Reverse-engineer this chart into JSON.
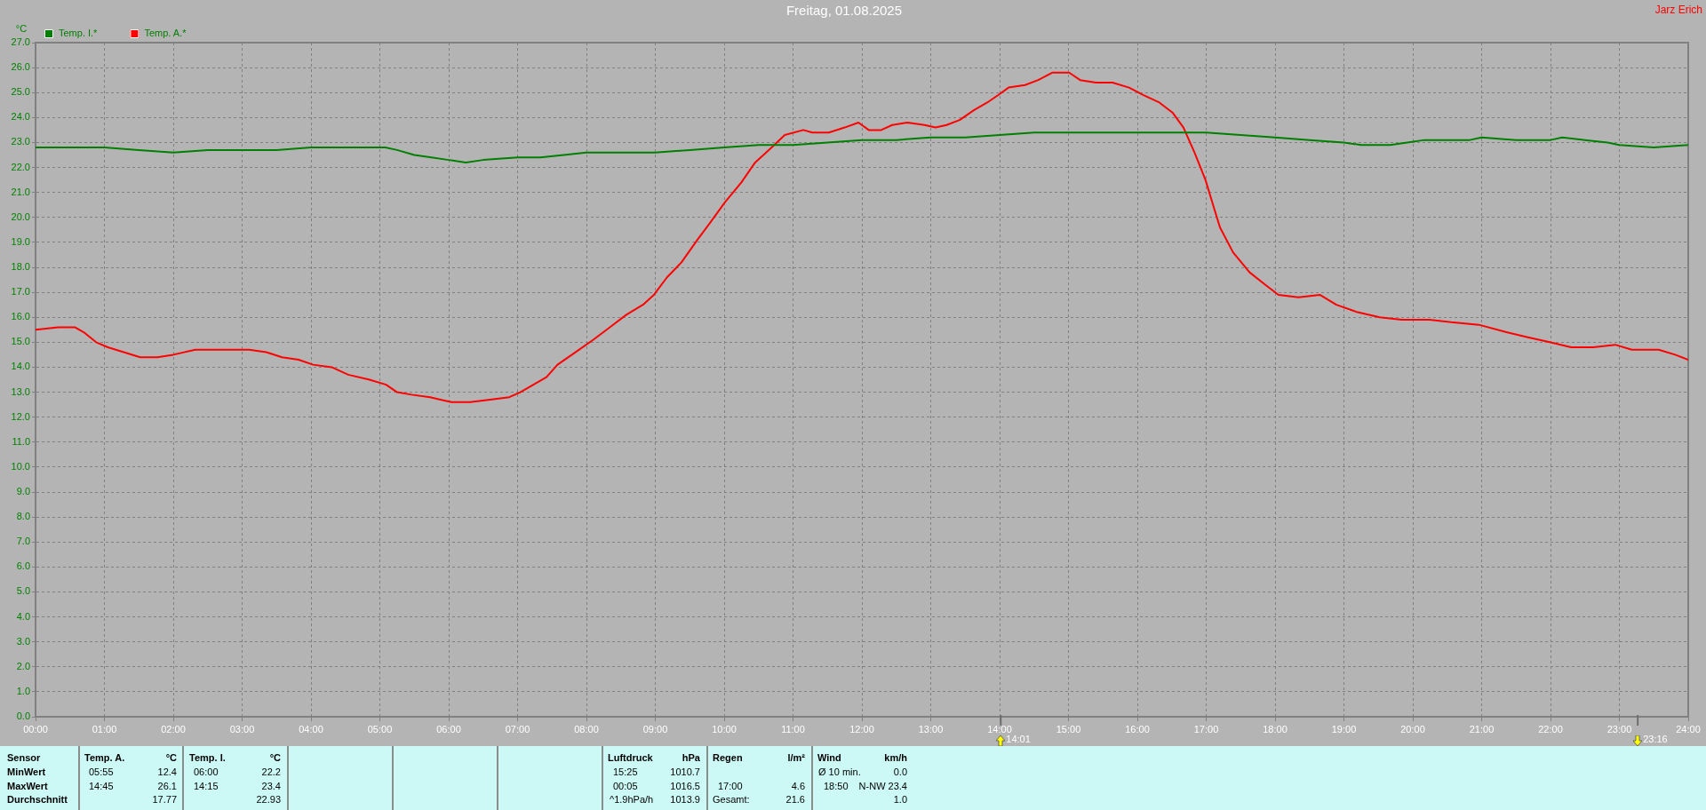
{
  "chart_data": {
    "type": "line",
    "title": "Freitag, 01.08.2025",
    "ylabel": "°C",
    "series": [
      {
        "name": "Temp. I.*",
        "color": "#008000",
        "x": [
          0,
          0.75,
          1,
          1.5,
          2,
          2.5,
          3,
          3.5,
          4,
          4.5,
          5.08,
          5.25,
          5.5,
          5.75,
          6,
          6.25,
          6.5,
          7,
          7.33,
          7.67,
          8,
          8.5,
          9,
          9.5,
          10,
          10.5,
          11,
          11.5,
          12,
          12.5,
          13,
          13.5,
          14,
          14.5,
          15,
          16,
          16.75,
          17,
          17.5,
          18,
          18.5,
          19,
          19.25,
          19.67,
          19.92,
          20.17,
          20.5,
          20.83,
          21,
          21.5,
          22,
          22.17,
          22.5,
          22.83,
          23,
          23.5,
          24
        ],
        "values": [
          22.8,
          22.8,
          22.8,
          22.7,
          22.6,
          22.7,
          22.7,
          22.7,
          22.8,
          22.8,
          22.8,
          22.7,
          22.5,
          22.4,
          22.3,
          22.2,
          22.3,
          22.4,
          22.4,
          22.5,
          22.6,
          22.6,
          22.6,
          22.7,
          22.8,
          22.9,
          22.9,
          23.0,
          23.1,
          23.1,
          23.2,
          23.2,
          23.3,
          23.4,
          23.4,
          23.4,
          23.4,
          23.4,
          23.3,
          23.2,
          23.1,
          23.0,
          22.9,
          22.9,
          23.0,
          23.1,
          23.1,
          23.1,
          23.2,
          23.1,
          23.1,
          23.2,
          23.1,
          23.0,
          22.9,
          22.8,
          22.9
        ]
      },
      {
        "name": "Temp. A.*",
        "color": "#ff0000",
        "x": [
          0,
          0.33,
          0.57,
          0.7,
          0.88,
          1.05,
          1.28,
          1.52,
          1.77,
          2,
          2.32,
          2.55,
          2.82,
          3.1,
          3.35,
          3.58,
          3.82,
          4.03,
          4.3,
          4.54,
          4.85,
          5.09,
          5.25,
          5.46,
          5.73,
          5.88,
          6.04,
          6.31,
          6.6,
          6.88,
          7.04,
          7.23,
          7.42,
          7.58,
          7.84,
          8.1,
          8.34,
          8.58,
          8.82,
          8.98,
          9.17,
          9.38,
          9.61,
          9.8,
          10.01,
          10.25,
          10.45,
          10.69,
          10.88,
          11.15,
          11.28,
          11.52,
          11.75,
          11.95,
          12.1,
          12.28,
          12.44,
          12.66,
          12.91,
          13.07,
          13.23,
          13.42,
          13.63,
          13.82,
          13.98,
          14.13,
          14.37,
          14.56,
          14.77,
          15.01,
          15.17,
          15.4,
          15.64,
          15.88,
          16.09,
          16.32,
          16.51,
          16.67,
          16.83,
          16.99,
          17.1,
          17.2,
          17.39,
          17.63,
          17.86,
          18.05,
          18.34,
          18.65,
          18.89,
          19.2,
          19.52,
          19.84,
          20.24,
          20.56,
          20.96,
          21.36,
          21.67,
          21.99,
          22.3,
          22.62,
          22.94,
          23.18,
          23.57,
          23.81,
          24
        ],
        "values": [
          15.5,
          15.6,
          15.6,
          15.4,
          15.0,
          14.8,
          14.6,
          14.4,
          14.4,
          14.5,
          14.7,
          14.7,
          14.7,
          14.7,
          14.6,
          14.4,
          14.3,
          14.1,
          14.0,
          13.7,
          13.5,
          13.3,
          13.0,
          12.9,
          12.8,
          12.7,
          12.6,
          12.6,
          12.7,
          12.8,
          13.0,
          13.3,
          13.6,
          14.1,
          14.6,
          15.1,
          15.6,
          16.1,
          16.5,
          16.9,
          17.6,
          18.2,
          19.1,
          19.8,
          20.6,
          21.4,
          22.2,
          22.8,
          23.3,
          23.5,
          23.4,
          23.4,
          23.6,
          23.8,
          23.5,
          23.5,
          23.7,
          23.8,
          23.7,
          23.6,
          23.7,
          23.9,
          24.3,
          24.6,
          24.9,
          25.2,
          25.3,
          25.5,
          25.8,
          25.8,
          25.5,
          25.4,
          25.4,
          25.2,
          24.9,
          24.6,
          24.2,
          23.6,
          22.6,
          21.5,
          20.5,
          19.6,
          18.6,
          17.8,
          17.3,
          16.9,
          16.8,
          16.9,
          16.5,
          16.2,
          16.0,
          15.9,
          15.9,
          15.8,
          15.7,
          15.4,
          15.2,
          15.0,
          14.8,
          14.8,
          14.9,
          14.7,
          14.7,
          14.5,
          14.3
        ]
      }
    ],
    "xlim": [
      0,
      24
    ],
    "xticks": [
      {
        "value": 0,
        "label": "00:00"
      },
      {
        "value": 1,
        "label": "01:00"
      },
      {
        "value": 2,
        "label": "02:00"
      },
      {
        "value": 3,
        "label": "03:00"
      },
      {
        "value": 4,
        "label": "04:00"
      },
      {
        "value": 5,
        "label": "05:00"
      },
      {
        "value": 6,
        "label": "06:00"
      },
      {
        "value": 7,
        "label": "07:00"
      },
      {
        "value": 8,
        "label": "08:00"
      },
      {
        "value": 9,
        "label": "09:00"
      },
      {
        "value": 10,
        "label": "10:00"
      },
      {
        "value": 11,
        "label": "11:00"
      },
      {
        "value": 12,
        "label": "12:00"
      },
      {
        "value": 13,
        "label": "13:00"
      },
      {
        "value": 14,
        "label": "14:00"
      },
      {
        "value": 15,
        "label": "15:00"
      },
      {
        "value": 16,
        "label": "16:00"
      },
      {
        "value": 17,
        "label": "17:00"
      },
      {
        "value": 18,
        "label": "18:00"
      },
      {
        "value": 19,
        "label": "19:00"
      },
      {
        "value": 20,
        "label": "20:00"
      },
      {
        "value": 21,
        "label": "21:00"
      },
      {
        "value": 22,
        "label": "22:00"
      },
      {
        "value": 23,
        "label": "23:00"
      },
      {
        "value": 24,
        "label": "24:00"
      }
    ],
    "ylim": [
      0,
      27
    ],
    "yticks": [
      {
        "value": 0,
        "label": "0.0"
      },
      {
        "value": 1,
        "label": "1.0"
      },
      {
        "value": 2,
        "label": "2.0"
      },
      {
        "value": 3,
        "label": "3.0"
      },
      {
        "value": 4,
        "label": "4.0"
      },
      {
        "value": 5,
        "label": "5.0"
      },
      {
        "value": 6,
        "label": "6.0"
      },
      {
        "value": 7,
        "label": "7.0"
      },
      {
        "value": 8,
        "label": "8.0"
      },
      {
        "value": 9,
        "label": "9.0"
      },
      {
        "value": 10,
        "label": "10.0"
      },
      {
        "value": 11,
        "label": "11.0"
      },
      {
        "value": 12,
        "label": "12.0"
      },
      {
        "value": 13,
        "label": "13.0"
      },
      {
        "value": 14,
        "label": "14.0"
      },
      {
        "value": 15,
        "label": "15.0"
      },
      {
        "value": 16,
        "label": "16.0"
      },
      {
        "value": 17,
        "label": "17.0"
      },
      {
        "value": 18,
        "label": "18.0"
      },
      {
        "value": 19,
        "label": "19.0"
      },
      {
        "value": 20,
        "label": "20.0"
      },
      {
        "value": 21,
        "label": "21.0"
      },
      {
        "value": 22,
        "label": "22.0"
      },
      {
        "value": 23,
        "label": "23.0"
      },
      {
        "value": 24,
        "label": "24.0"
      },
      {
        "value": 25,
        "label": "25.0"
      },
      {
        "value": 26,
        "label": "26.0"
      },
      {
        "value": 27,
        "label": "27.0"
      }
    ],
    "ref_lines": [
      {
        "axis": "x",
        "value": 14.0167,
        "label": "14:01"
      },
      {
        "axis": "x",
        "value": 23.2667,
        "label": "23:16"
      }
    ],
    "grid": true,
    "legend": "top left",
    "marker": "none",
    "line_style": "solid",
    "annotations": [
      "Sensor",
      "MinWert",
      "MaxWert",
      "Durchschnitt",
      "Temp. A.",
      "°C",
      "05:55",
      "12.4",
      "14:45",
      "26.1",
      "17.77",
      "Temp. I.",
      "°C",
      "06:00",
      "22.2",
      "14:15",
      "23.4",
      "22.93",
      "Luftdruck",
      "hPa",
      "15:25",
      "1010.7",
      "00:05",
      "1016.5",
      "^1.9hPa/h",
      "1013.9",
      "Regen",
      "l/m²",
      "17:00",
      "4.6",
      "Gesamt:",
      "21.6",
      "Wind",
      "km/h",
      "Ø 10 min.",
      "0.0",
      "18:50",
      "N-NW 23.4",
      "1.0",
      "Jarz Erich"
    ]
  }
}
